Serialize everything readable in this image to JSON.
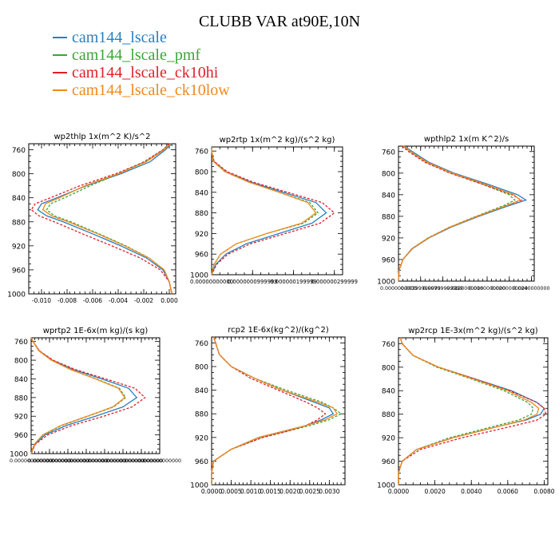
{
  "title": "CLUBB VAR at90E,10N",
  "colors": {
    "cam144_lscale": "#2a7fc0",
    "cam144_lscale_pmf": "#3aa637",
    "cam144_lscale_ck10hi": "#e01f27",
    "cam144_lscale_ck10low": "#f0891e"
  },
  "legend": [
    {
      "name": "cam144_lscale",
      "color": "#2a7fc0"
    },
    {
      "name": "cam144_lscale_pmf",
      "color": "#3aa637"
    },
    {
      "name": "cam144_lscale_ck10hi",
      "color": "#e01f27"
    },
    {
      "name": "cam144_lscale_ck10low",
      "color": "#f0891e"
    }
  ],
  "chart_data": [
    {
      "type": "line",
      "title": "wp2thlp  1x(m^2 K)/s^2",
      "y": [
        750,
        760,
        780,
        800,
        820,
        840,
        850,
        860,
        870,
        880,
        900,
        920,
        940,
        960,
        980,
        1000
      ],
      "ylim": [
        1000,
        750
      ],
      "yticks": [
        760,
        800,
        840,
        880,
        920,
        960,
        1000
      ],
      "xlim": [
        -0.011,
        0.0005
      ],
      "xticks": [
        -0.01,
        -0.008,
        -0.006,
        -0.004,
        -0.002,
        0.0
      ],
      "xticklabels": [
        "-0.010",
        "-0.008",
        "-0.006",
        "-0.004",
        "-0.002",
        "0.000"
      ],
      "series": [
        {
          "name": "cam144_lscale",
          "values": [
            0.0002,
            -0.0003,
            -0.0015,
            -0.0038,
            -0.0065,
            -0.0088,
            -0.01,
            -0.0103,
            -0.0096,
            -0.0083,
            -0.006,
            -0.0038,
            -0.0018,
            -0.0005,
            0.0,
            0.0002
          ]
        },
        {
          "name": "cam144_lscale_pmf",
          "values": [
            0.0001,
            -0.0005,
            -0.002,
            -0.004,
            -0.0062,
            -0.0082,
            -0.0093,
            -0.0096,
            -0.009,
            -0.0077,
            -0.0055,
            -0.0034,
            -0.0016,
            -0.0004,
            0.0,
            0.0002
          ]
        },
        {
          "name": "cam144_lscale_ck10hi",
          "values": [
            0.0,
            -0.0005,
            -0.0019,
            -0.0042,
            -0.007,
            -0.0093,
            -0.0105,
            -0.0108,
            -0.0102,
            -0.009,
            -0.0068,
            -0.0045,
            -0.0023,
            -0.0007,
            0.0,
            0.0002
          ]
        },
        {
          "name": "cam144_lscale_ck10low",
          "values": [
            0.0001,
            -0.0004,
            -0.0018,
            -0.004,
            -0.0066,
            -0.0086,
            -0.0097,
            -0.0099,
            -0.0092,
            -0.0079,
            -0.0056,
            -0.0035,
            -0.0016,
            -0.0004,
            0.0,
            0.0002
          ]
        }
      ]
    },
    {
      "type": "line",
      "title": "wp2rtp  1x(m^2 kg)/(s^2 kg)",
      "y": [
        752,
        760,
        780,
        800,
        820,
        840,
        860,
        880,
        900,
        920,
        940,
        960,
        980,
        1000
      ],
      "ylim": [
        1000,
        752
      ],
      "yticks": [
        760,
        800,
        840,
        880,
        920,
        960,
        1000
      ],
      "xlim": [
        0,
        3.2e-07
      ],
      "xticks": [
        0,
        1e-07,
        2e-07,
        3e-07
      ],
      "xticklabels": [
        "0.00000000000",
        "0.0000000999999",
        "0.000000199999",
        "0.000000299999"
      ],
      "series": [
        {
          "name": "cam144_lscale",
          "values": [
            0.0,
            2e-10,
            5e-09,
            3.5e-08,
            9.5e-08,
            1.75e-07,
            2.55e-07,
            2.8e-07,
            2.45e-07,
            1.65e-07,
            8.5e-08,
            3.5e-08,
            1e-08,
            0.0
          ]
        },
        {
          "name": "cam144_lscale_pmf",
          "values": [
            0.0,
            2e-10,
            4e-09,
            3.2e-08,
            9e-08,
            1.65e-07,
            2.4e-07,
            2.6e-07,
            2.25e-07,
            1.35e-07,
            6e-08,
            2.2e-08,
            6e-09,
            0.0
          ]
        },
        {
          "name": "cam144_lscale_ck10hi",
          "values": [
            0.0,
            2e-10,
            6e-09,
            3.8e-08,
            1e-07,
            1.85e-07,
            2.7e-07,
            3e-07,
            2.65e-07,
            1.8e-07,
            9.5e-08,
            4e-08,
            1.2e-08,
            0.0
          ]
        },
        {
          "name": "cam144_lscale_ck10low",
          "values": [
            0.0,
            2e-10,
            4e-09,
            3.3e-08,
            9e-08,
            1.65e-07,
            2.35e-07,
            2.55e-07,
            2.2e-07,
            1.35e-07,
            6e-08,
            2.2e-08,
            6e-09,
            0.0
          ]
        }
      ]
    },
    {
      "type": "line",
      "title": "wpthlp2  1x(m K^2)/s",
      "y": [
        750,
        760,
        780,
        800,
        820,
        840,
        850,
        860,
        880,
        900,
        920,
        940,
        960,
        980,
        1000
      ],
      "ylim": [
        1000,
        750
      ],
      "yticks": [
        760,
        800,
        840,
        880,
        920,
        960,
        1000
      ],
      "xlim": [
        0,
        0.0245
      ],
      "xticks": [
        0,
        0.004,
        0.008,
        0.012,
        0.016,
        0.02,
        0.024
      ],
      "xticklabels": [
        "0.0000000000",
        "0.00399999999",
        "0.00799999999",
        "0.0120000000",
        "0.0160000000",
        "0.0200000000",
        "0.0240000000"
      ],
      "series": [
        {
          "name": "cam144_lscale",
          "values": [
            0.001,
            0.0025,
            0.0055,
            0.01,
            0.016,
            0.0215,
            0.023,
            0.02,
            0.0145,
            0.0095,
            0.0055,
            0.0025,
            0.0008,
            0.0001,
            0.0
          ]
        },
        {
          "name": "cam144_lscale_pmf",
          "values": [
            0.0008,
            0.002,
            0.005,
            0.0095,
            0.015,
            0.02,
            0.021,
            0.019,
            0.014,
            0.0092,
            0.0053,
            0.0024,
            0.0008,
            0.0001,
            0.0
          ]
        },
        {
          "name": "cam144_lscale_ck10hi",
          "values": [
            0.0006,
            0.0018,
            0.0048,
            0.0093,
            0.015,
            0.0205,
            0.0222,
            0.0195,
            0.0142,
            0.0093,
            0.0054,
            0.0024,
            0.0008,
            0.0001,
            0.0
          ]
        },
        {
          "name": "cam144_lscale_ck10low",
          "values": [
            0.0009,
            0.0022,
            0.0052,
            0.0097,
            0.0155,
            0.0208,
            0.022,
            0.0195,
            0.0142,
            0.0093,
            0.0054,
            0.0024,
            0.0008,
            0.0001,
            0.0
          ]
        }
      ]
    },
    {
      "type": "line",
      "title": "wprtp2  1E-6x(m kg)/(s kg)",
      "y": [
        752,
        760,
        780,
        800,
        820,
        840,
        860,
        880,
        900,
        920,
        940,
        960,
        980,
        1000
      ],
      "ylim": [
        1000,
        752
      ],
      "yticks": [
        760,
        800,
        840,
        880,
        920,
        960,
        1000
      ],
      "xlim": [
        0,
        1.4e-11
      ],
      "xticks": [
        0,
        2e-12,
        4e-12,
        6e-12,
        8e-12,
        1e-11,
        1.2e-11,
        1.4e-11
      ],
      "xticklabels": [
        "0.000000000000",
        "0.000000000000",
        "0.000000000000",
        "0.000000000000",
        "0.000000000000",
        "0.000000000000",
        "0.000000000000",
        "0.000000000000"
      ],
      "series": [
        {
          "name": "cam144_lscale",
          "values": [
            0.0,
            2e-13,
            9e-13,
            2.3e-12,
            4.6e-12,
            7.7e-12,
            1.06e-11,
            1.15e-11,
            1e-11,
            7e-12,
            3.8e-12,
            1.5e-12,
            4e-13,
            0.0
          ]
        },
        {
          "name": "cam144_lscale_pmf",
          "values": [
            0.0,
            2e-13,
            8.5e-13,
            2.2e-12,
            4.3e-12,
            7.1e-12,
            9.6e-12,
            1.03e-11,
            9e-12,
            6.2e-12,
            3.3e-12,
            1.3e-12,
            3.5e-13,
            0.0
          ]
        },
        {
          "name": "cam144_lscale_ck10hi",
          "values": [
            0.0,
            2e-13,
            9e-13,
            2.4e-12,
            4.8e-12,
            8.1e-12,
            1.13e-11,
            1.24e-11,
            1.1e-11,
            7.9e-12,
            4.4e-12,
            1.8e-12,
            4.5e-13,
            0.0
          ]
        },
        {
          "name": "cam144_lscale_ck10low",
          "values": [
            0.0,
            2e-13,
            8.5e-13,
            2.2e-12,
            4.3e-12,
            7e-12,
            9.5e-12,
            1.02e-11,
            8.9e-12,
            6.1e-12,
            3.2e-12,
            1.25e-12,
            3.5e-13,
            0.0
          ]
        }
      ]
    },
    {
      "type": "line",
      "title": "rcp2  1E-6x(kg^2)/(kg^2)",
      "y": [
        750,
        760,
        780,
        800,
        820,
        840,
        860,
        870,
        880,
        890,
        900,
        910,
        920,
        940,
        960,
        980,
        1000
      ],
      "ylim": [
        1000,
        750
      ],
      "yticks": [
        760,
        800,
        840,
        880,
        920,
        960,
        1000
      ],
      "xlim": [
        0,
        0.0034
      ],
      "xticks": [
        0,
        0.0005,
        0.001,
        0.0015,
        0.002,
        0.0025,
        0.003
      ],
      "xticklabels": [
        "0.0000",
        "0.0005",
        "0.0010",
        "0.0015",
        "0.0020",
        "0.0025",
        "0.0030"
      ],
      "series": [
        {
          "name": "cam144_lscale",
          "values": [
            5e-05,
            0.0001,
            0.0002,
            0.0005,
            0.0011,
            0.0018,
            0.0026,
            0.003,
            0.0031,
            0.0028,
            0.0024,
            0.0018,
            0.0012,
            0.0005,
            5e-05,
            0.0,
            0.0
          ]
        },
        {
          "name": "cam144_lscale_pmf",
          "values": [
            5e-05,
            0.0001,
            0.0002,
            0.0005,
            0.0011,
            0.0019,
            0.0028,
            0.0031,
            0.0033,
            0.003,
            0.0025,
            0.0019,
            0.0013,
            0.0005,
            5e-05,
            0.0,
            0.0
          ]
        },
        {
          "name": "cam144_lscale_ck10hi",
          "values": [
            5e-05,
            0.0001,
            0.0002,
            0.0005,
            0.001,
            0.0017,
            0.0024,
            0.0027,
            0.0029,
            0.0027,
            0.0024,
            0.0019,
            0.0013,
            0.0005,
            5e-05,
            0.0,
            0.0
          ]
        },
        {
          "name": "cam144_lscale_ck10low",
          "values": [
            5e-05,
            0.0001,
            0.0002,
            0.0005,
            0.0011,
            0.0018,
            0.0027,
            0.0031,
            0.0032,
            0.0029,
            0.0024,
            0.0018,
            0.0012,
            0.0005,
            5e-05,
            0.0,
            0.0
          ]
        }
      ]
    },
    {
      "type": "line",
      "title": "wp2rcp  1E-3x(m^2 kg)/(s^2 kg)",
      "y": [
        750,
        760,
        780,
        800,
        820,
        840,
        860,
        870,
        880,
        890,
        900,
        920,
        940,
        960,
        980,
        1000
      ],
      "ylim": [
        1000,
        750
      ],
      "yticks": [
        760,
        800,
        840,
        880,
        920,
        960,
        1000
      ],
      "xlim": [
        0,
        0.0082
      ],
      "xticks": [
        0,
        0.002,
        0.004,
        0.006,
        0.008
      ],
      "xticklabels": [
        "0.0000",
        "0.0020",
        "0.0040",
        "0.0060",
        "0.0080"
      ],
      "series": [
        {
          "name": "cam144_lscale",
          "values": [
            0.0001,
            0.0002,
            0.0008,
            0.0022,
            0.0042,
            0.0062,
            0.0076,
            0.008,
            0.0078,
            0.007,
            0.0056,
            0.003,
            0.001,
            0.0002,
            0.0,
            0.0
          ]
        },
        {
          "name": "cam144_lscale_pmf",
          "values": [
            0.0001,
            0.0002,
            0.0008,
            0.0021,
            0.004,
            0.0058,
            0.0071,
            0.0074,
            0.0073,
            0.0066,
            0.0053,
            0.0028,
            0.001,
            0.0002,
            0.0,
            0.0
          ]
        },
        {
          "name": "cam144_lscale_ck10hi",
          "values": [
            0.0001,
            0.0002,
            0.0008,
            0.0022,
            0.0042,
            0.0061,
            0.0076,
            0.008,
            0.0081,
            0.0076,
            0.0063,
            0.0035,
            0.0012,
            0.0002,
            0.0,
            0.0
          ]
        },
        {
          "name": "cam144_lscale_ck10low",
          "values": [
            0.0001,
            0.0002,
            0.0008,
            0.0022,
            0.0041,
            0.006,
            0.0073,
            0.0077,
            0.0076,
            0.0069,
            0.0056,
            0.003,
            0.001,
            0.0002,
            0.0,
            0.0
          ]
        }
      ]
    }
  ]
}
